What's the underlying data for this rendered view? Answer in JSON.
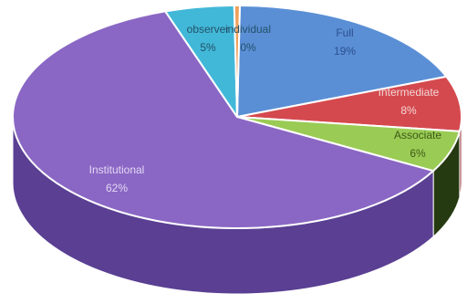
{
  "chart_data": {
    "type": "pie",
    "title": "",
    "three_d": true,
    "legend": "none",
    "slices": [
      {
        "label": "Full",
        "percent_label": "19%",
        "value": 19,
        "color": "#5a8fd6",
        "side_color": "#3c6fb5",
        "label_color": "#2d4f8f"
      },
      {
        "label": "Intermediate",
        "percent_label": "8%",
        "value": 8,
        "color": "#d4494e",
        "side_color": "#9b2f33",
        "label_color": "#f3d6d6"
      },
      {
        "label": "Associate",
        "percent_label": "6%",
        "value": 6,
        "color": "#9acb54",
        "side_color": "#263a12",
        "label_color": "#3d5a18"
      },
      {
        "label": "Institutional",
        "percent_label": "62%",
        "value": 62,
        "color": "#8a67c4",
        "side_color": "#5a3f93",
        "label_color": "#e3d8f3"
      },
      {
        "label": "observer",
        "percent_label": "5%",
        "value": 5,
        "color": "#42b8d8",
        "side_color": "#2b8aa7",
        "label_color": "#23526a"
      },
      {
        "label": "individual",
        "percent_label": "0%",
        "value": 0.4,
        "color": "#f0a05a",
        "side_color": "#c67a38",
        "label_color": "#23526a"
      }
    ]
  }
}
